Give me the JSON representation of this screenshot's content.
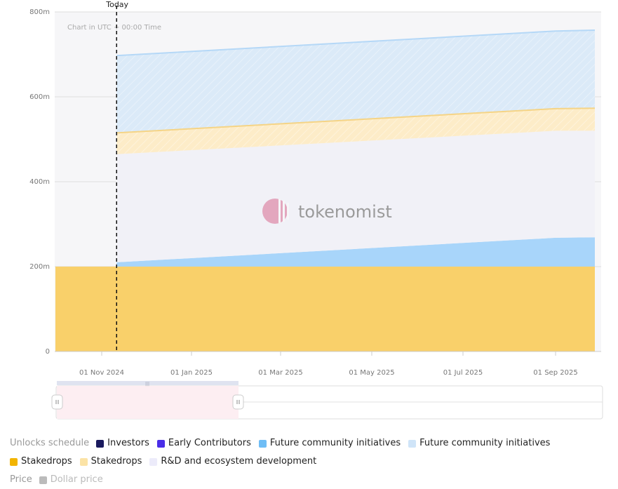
{
  "chart_data": {
    "type": "area",
    "stacked": true,
    "x_ticks": [
      "01 Nov 2024",
      "01 Jan 2025",
      "01 Mar 2025",
      "01 May 2025",
      "01 Jul 2025",
      "01 Sep 2025"
    ],
    "y_ticks": [
      "800m",
      "600m",
      "400m",
      "200m",
      "0"
    ],
    "ylim": [
      0,
      800
    ],
    "today_label": "Today",
    "timezone_note": "Chart in UTC + 00:00 Time",
    "watermark": "tokenomist",
    "x": [
      "2024-10-03",
      "2024-10-12",
      "2025-09-01",
      "2025-09-30"
    ],
    "series": [
      {
        "name": "Stakedrops",
        "color": "#f9d06a",
        "values": [
          200,
          200,
          200,
          200
        ]
      },
      {
        "name": "Future community initiatives",
        "color": "#a8d5fa",
        "values": [
          0,
          10,
          68,
          69
        ]
      },
      {
        "name": "R&D and ecosystem development",
        "color": "#f1f1f7",
        "values": [
          0,
          255,
          252,
          251
        ]
      },
      {
        "name": "Stakedrops",
        "color": "#fdecc8",
        "values": [
          0,
          50,
          52,
          53
        ]
      },
      {
        "name": "Future community initiatives",
        "color": "#dbeaf8",
        "values": [
          0,
          182,
          183,
          184
        ]
      }
    ],
    "today_x": "2024-10-12"
  },
  "legend": {
    "title": "Unlocks schedule",
    "items": [
      {
        "label": "Investors",
        "color": "#1a1a5e"
      },
      {
        "label": "Early Contributors",
        "color": "#4a2ee8"
      },
      {
        "label": "Future community initiatives",
        "color": "#6fbdf5"
      },
      {
        "label": "Future community initiatives",
        "color": "#cfe4f8"
      },
      {
        "label": "Stakedrops",
        "color": "#f2b400"
      },
      {
        "label": "Stakedrops",
        "color": "#fbe3a6"
      },
      {
        "label": "R&D and ecosystem development",
        "color": "#ecebfa"
      }
    ],
    "price_title": "Price",
    "price_item": {
      "label": "Dollar price",
      "color": "#bbbbbb"
    }
  }
}
